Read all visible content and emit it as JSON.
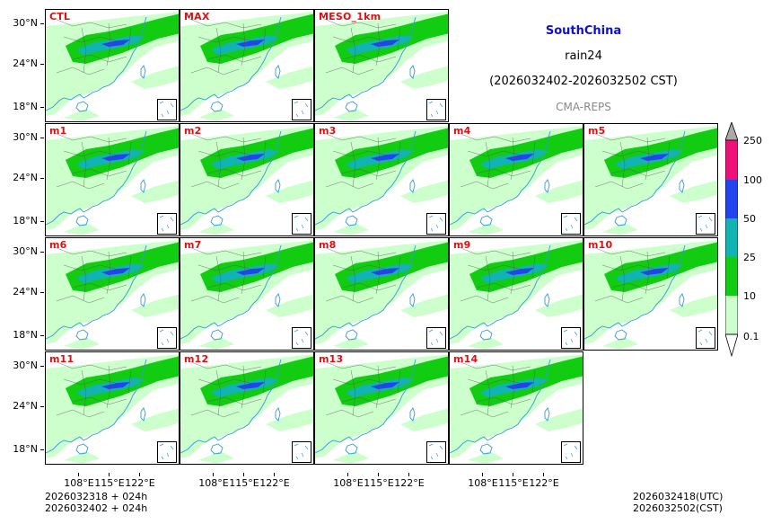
{
  "header": {
    "region": "SouthChina",
    "variable": "rain24",
    "period": "(2026032402-2026032502 CST)",
    "system": "CMA-REPS"
  },
  "panels": [
    {
      "label": "CTL"
    },
    {
      "label": "MAX"
    },
    {
      "label": "MESO_1km"
    },
    {
      "label": "m1"
    },
    {
      "label": "m2"
    },
    {
      "label": "m3"
    },
    {
      "label": "m4"
    },
    {
      "label": "m5"
    },
    {
      "label": "m6"
    },
    {
      "label": "m7"
    },
    {
      "label": "m8"
    },
    {
      "label": "m9"
    },
    {
      "label": "m10"
    },
    {
      "label": "m11"
    },
    {
      "label": "m12"
    },
    {
      "label": "m13"
    },
    {
      "label": "m14"
    }
  ],
  "axes": {
    "lat_labels": [
      "30°N",
      "24°N",
      "18°N"
    ],
    "lon_labels": [
      "108°E",
      "115°E",
      "122°E"
    ]
  },
  "colorbar": {
    "levels": [
      "0.1",
      "10",
      "25",
      "50",
      "100",
      "250"
    ],
    "colors": [
      "#ccffcc",
      "#11cc11",
      "#11b3b3",
      "#2244ee",
      "#ee1177",
      "#aaaaaa"
    ]
  },
  "footer": {
    "init_utc": "2026032318  +  024h",
    "init_cst": "2026032402  +  024h",
    "valid_utc": "2026032418(UTC)",
    "valid_cst": "2026032502(CST)"
  }
}
